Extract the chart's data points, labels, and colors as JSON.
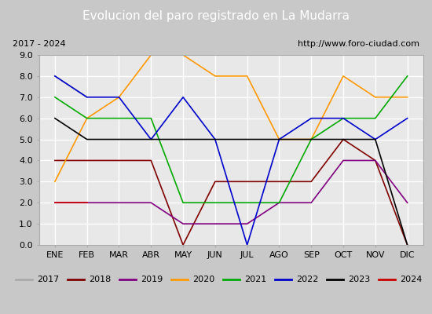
{
  "title": "Evolucion del paro registrado en La Mudarra",
  "subtitle_left": "2017 - 2024",
  "subtitle_right": "http://www.foro-ciudad.com",
  "xlabel_months": [
    "ENE",
    "FEB",
    "MAR",
    "ABR",
    "MAY",
    "JUN",
    "JUL",
    "AGO",
    "SEP",
    "OCT",
    "NOV",
    "DIC"
  ],
  "ylim": [
    0,
    9.0
  ],
  "yticks": [
    0.0,
    1.0,
    2.0,
    3.0,
    4.0,
    5.0,
    6.0,
    7.0,
    8.0,
    9.0
  ],
  "series": {
    "2017": {
      "color": "#aaaaaa",
      "values": [
        8.0,
        7.0,
        null,
        null,
        null,
        null,
        null,
        null,
        null,
        null,
        null,
        null
      ]
    },
    "2018": {
      "color": "#800000",
      "values": [
        4.0,
        4.0,
        4.0,
        4.0,
        0.0,
        3.0,
        3.0,
        3.0,
        3.0,
        5.0,
        4.0,
        0.0
      ]
    },
    "2019": {
      "color": "#800080",
      "values": [
        2.0,
        2.0,
        2.0,
        2.0,
        1.0,
        1.0,
        1.0,
        2.0,
        2.0,
        4.0,
        4.0,
        2.0
      ]
    },
    "2020": {
      "color": "#ff9900",
      "values": [
        3.0,
        6.0,
        7.0,
        9.0,
        9.0,
        8.0,
        8.0,
        5.0,
        5.0,
        8.0,
        7.0,
        7.0
      ]
    },
    "2021": {
      "color": "#00aa00",
      "values": [
        7.0,
        6.0,
        6.0,
        6.0,
        2.0,
        2.0,
        2.0,
        2.0,
        5.0,
        6.0,
        6.0,
        8.0
      ]
    },
    "2022": {
      "color": "#0000cc",
      "values": [
        8.0,
        7.0,
        7.0,
        5.0,
        7.0,
        5.0,
        0.0,
        5.0,
        6.0,
        6.0,
        5.0,
        6.0
      ]
    },
    "2023": {
      "color": "#000000",
      "values": [
        6.0,
        5.0,
        null,
        null,
        null,
        null,
        null,
        null,
        null,
        5.0,
        5.0,
        0.0
      ]
    },
    "2024": {
      "color": "#cc0000",
      "values": [
        2.0,
        2.0,
        null,
        null,
        null,
        null,
        null,
        null,
        null,
        null,
        null,
        null
      ]
    }
  },
  "bg_title": "#5b8dd9",
  "bg_plot": "#e8e8e8",
  "bg_outer": "#c8c8c8",
  "bg_subtitle": "#ffffff",
  "grid_color": "#ffffff",
  "title_color": "#ffffff",
  "title_fontsize": 11,
  "subtitle_fontsize": 8,
  "tick_fontsize": 8,
  "legend_fontsize": 8
}
